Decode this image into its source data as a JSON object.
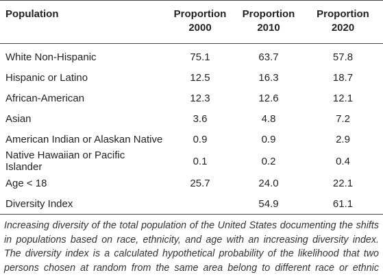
{
  "table": {
    "header": [
      [
        "Population"
      ],
      [
        "Proportion",
        "2000"
      ],
      [
        "Proportion",
        "2010"
      ],
      [
        "Proportion",
        "2020"
      ]
    ],
    "rows": [
      [
        "White Non-Hispanic",
        "75.1",
        "63.7",
        "57.8"
      ],
      [
        "Hispanic or Latino",
        "12.5",
        "16.3",
        "18.7"
      ],
      [
        "African-American",
        "12.3",
        "12.6",
        "12.1"
      ],
      [
        "Asian",
        "3.6",
        "4.8",
        "7.2"
      ],
      [
        "American Indian or Alaskan Native",
        "0.9",
        "0.9",
        "2.9"
      ],
      [
        "Native Hawaiian or Pacific Islander",
        "0.1",
        "0.2",
        "0.4"
      ],
      [
        "Age < 18",
        "25.7",
        "24.0",
        "22.1"
      ],
      [
        "Diversity Index",
        null,
        "54.9",
        "61.1"
      ]
    ],
    "footnote": "Increasing diversity of the total population of the United States documenting the shifts in populations based on race, ethnicity, and age with an increasing diversity index. The diversity index is a calculated hypothetical probability of the likelihood that two persons chosen at random from the same area belong to different race or ethnic groups as defined by the Census Bureau."
  }
}
